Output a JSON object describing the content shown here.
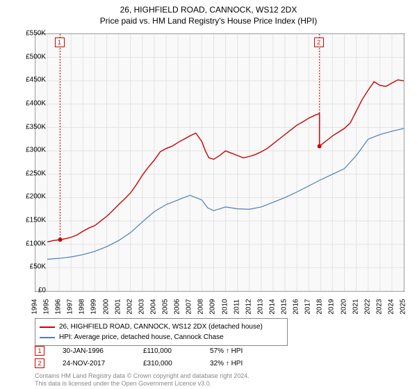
{
  "title_line1": "26, HIGHFIELD ROAD, CANNOCK, WS12 2DX",
  "title_line2": "Price paid vs. HM Land Registry's House Price Index (HPI)",
  "chart": {
    "type": "line",
    "background_color": "#f9f9f9",
    "grid_color": "#e3e3e3",
    "border_color": "#666666",
    "x": {
      "min": 1994,
      "max": 2025,
      "tick_step": 1,
      "labels": [
        "1994",
        "1995",
        "1996",
        "1997",
        "1998",
        "1999",
        "2000",
        "2001",
        "2002",
        "2003",
        "2004",
        "2005",
        "2006",
        "2007",
        "2008",
        "2009",
        "2010",
        "2011",
        "2012",
        "2013",
        "2014",
        "2015",
        "2016",
        "2017",
        "2018",
        "2019",
        "2020",
        "2021",
        "2022",
        "2023",
        "2024",
        "2025"
      ]
    },
    "y": {
      "min": 0,
      "max": 550000,
      "tick_step": 50000,
      "labels": [
        "£0",
        "£50K",
        "£100K",
        "£150K",
        "£200K",
        "£250K",
        "£300K",
        "£350K",
        "£400K",
        "£450K",
        "£500K",
        "£550K"
      ]
    },
    "series": [
      {
        "name": "26, HIGHFIELD ROAD, CANNOCK, WS12 2DX (detached house)",
        "color": "#cc0000",
        "width": 1.4,
        "data": [
          [
            1995.0,
            105000
          ],
          [
            1995.5,
            108000
          ],
          [
            1996.08,
            110000
          ],
          [
            1996.5,
            112000
          ],
          [
            1997.0,
            115000
          ],
          [
            1997.5,
            120000
          ],
          [
            1998.0,
            128000
          ],
          [
            1998.5,
            135000
          ],
          [
            1999.0,
            140000
          ],
          [
            1999.5,
            150000
          ],
          [
            2000.0,
            160000
          ],
          [
            2000.5,
            172000
          ],
          [
            2001.0,
            185000
          ],
          [
            2001.5,
            197000
          ],
          [
            2002.0,
            210000
          ],
          [
            2002.5,
            228000
          ],
          [
            2003.0,
            248000
          ],
          [
            2003.5,
            265000
          ],
          [
            2004.0,
            280000
          ],
          [
            2004.5,
            298000
          ],
          [
            2005.0,
            305000
          ],
          [
            2005.5,
            310000
          ],
          [
            2006.0,
            318000
          ],
          [
            2006.5,
            325000
          ],
          [
            2007.0,
            332000
          ],
          [
            2007.5,
            338000
          ],
          [
            2008.0,
            320000
          ],
          [
            2008.3,
            300000
          ],
          [
            2008.6,
            285000
          ],
          [
            2009.0,
            282000
          ],
          [
            2009.5,
            290000
          ],
          [
            2010.0,
            300000
          ],
          [
            2010.5,
            295000
          ],
          [
            2011.0,
            290000
          ],
          [
            2011.5,
            285000
          ],
          [
            2012.0,
            288000
          ],
          [
            2012.5,
            292000
          ],
          [
            2013.0,
            298000
          ],
          [
            2013.5,
            305000
          ],
          [
            2014.0,
            315000
          ],
          [
            2014.5,
            325000
          ],
          [
            2015.0,
            335000
          ],
          [
            2015.5,
            345000
          ],
          [
            2016.0,
            355000
          ],
          [
            2016.5,
            362000
          ],
          [
            2017.0,
            370000
          ],
          [
            2017.5,
            376000
          ],
          [
            2017.9,
            380000
          ],
          [
            2017.9,
            310000
          ],
          [
            2018.0,
            312000
          ],
          [
            2018.5,
            322000
          ],
          [
            2019.0,
            332000
          ],
          [
            2019.5,
            340000
          ],
          [
            2020.0,
            348000
          ],
          [
            2020.5,
            360000
          ],
          [
            2021.0,
            385000
          ],
          [
            2021.5,
            410000
          ],
          [
            2022.0,
            430000
          ],
          [
            2022.5,
            448000
          ],
          [
            2023.0,
            440000
          ],
          [
            2023.5,
            438000
          ],
          [
            2024.0,
            445000
          ],
          [
            2024.5,
            452000
          ],
          [
            2025.0,
            450000
          ]
        ]
      },
      {
        "name": "HPI: Average price, detached house, Cannock Chase",
        "color": "#4a7ebb",
        "width": 1.2,
        "data": [
          [
            1995.0,
            68000
          ],
          [
            1996.0,
            70000
          ],
          [
            1997.0,
            73000
          ],
          [
            1998.0,
            78000
          ],
          [
            1999.0,
            85000
          ],
          [
            2000.0,
            95000
          ],
          [
            2001.0,
            108000
          ],
          [
            2002.0,
            125000
          ],
          [
            2003.0,
            148000
          ],
          [
            2004.0,
            170000
          ],
          [
            2005.0,
            185000
          ],
          [
            2006.0,
            195000
          ],
          [
            2007.0,
            205000
          ],
          [
            2008.0,
            195000
          ],
          [
            2008.5,
            178000
          ],
          [
            2009.0,
            172000
          ],
          [
            2010.0,
            180000
          ],
          [
            2011.0,
            176000
          ],
          [
            2012.0,
            175000
          ],
          [
            2013.0,
            180000
          ],
          [
            2014.0,
            190000
          ],
          [
            2015.0,
            200000
          ],
          [
            2016.0,
            212000
          ],
          [
            2017.0,
            225000
          ],
          [
            2018.0,
            238000
          ],
          [
            2019.0,
            250000
          ],
          [
            2020.0,
            262000
          ],
          [
            2021.0,
            290000
          ],
          [
            2022.0,
            325000
          ],
          [
            2023.0,
            335000
          ],
          [
            2024.0,
            342000
          ],
          [
            2025.0,
            348000
          ]
        ]
      }
    ],
    "markers": [
      {
        "n": "1",
        "x": 1996.08,
        "y": 110000,
        "dash_top": true
      },
      {
        "n": "2",
        "x": 2017.9,
        "y": 310000,
        "dash_top": true
      }
    ]
  },
  "legend": [
    {
      "color": "#cc0000",
      "label": "26, HIGHFIELD ROAD, CANNOCK, WS12 2DX (detached house)"
    },
    {
      "color": "#4a7ebb",
      "label": "HPI: Average price, detached house, Cannock Chase"
    }
  ],
  "sales": [
    {
      "n": "1",
      "date": "30-JAN-1996",
      "price": "£110,000",
      "hpi": "57% ↑ HPI"
    },
    {
      "n": "2",
      "date": "24-NOV-2017",
      "price": "£310,000",
      "hpi": "32% ↑ HPI"
    }
  ],
  "footer_line1": "Contains HM Land Registry data © Crown copyright and database right 2024.",
  "footer_line2": "This data is licensed under the Open Government Licence v3.0.",
  "fonts": {
    "title": 12,
    "axis": 10,
    "legend": 10,
    "footer": 9
  }
}
